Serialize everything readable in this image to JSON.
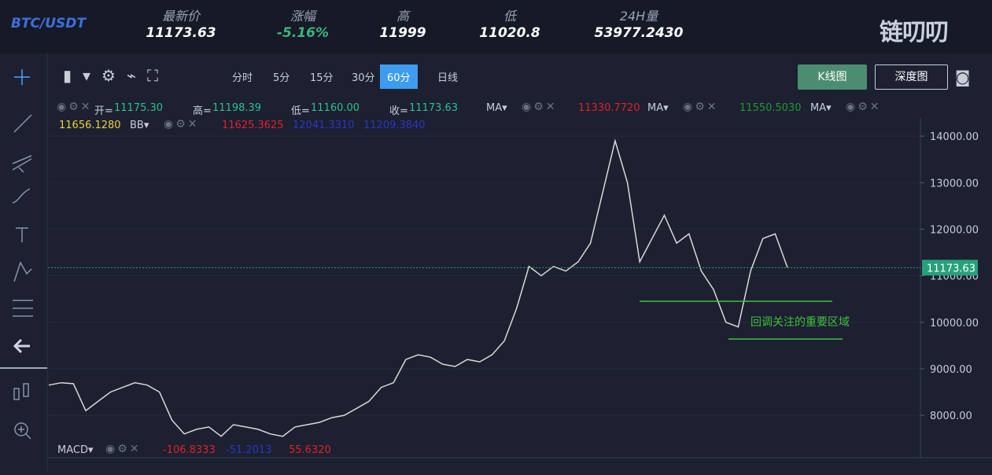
{
  "header": {
    "pair": "BTC/USDT",
    "logo": "链叨叨",
    "stats": [
      {
        "label": "最新价",
        "value": "11173.63"
      },
      {
        "label": "涨幅",
        "value": "-5.16%",
        "color": "#3fb27f"
      },
      {
        "label": "高",
        "value": "11999"
      },
      {
        "label": "低",
        "value": "11020.8"
      },
      {
        "label": "24H量",
        "value": "53977.2430"
      }
    ]
  },
  "toolbar": {
    "intervals": [
      "分时",
      "5分",
      "15分",
      "30分",
      "60分",
      "日线"
    ],
    "active": 4,
    "buttons": [
      "K线图",
      "深度图"
    ]
  },
  "legend": {
    "ohlc": [
      {
        "label": "开=",
        "value": "11175.30"
      },
      {
        "label": "高=",
        "value": "11198.39"
      },
      {
        "label": "低=",
        "value": "11160.00"
      },
      {
        "label": "收=",
        "value": "11173.63"
      }
    ],
    "ma": [
      {
        "label": "MA",
        "value": "11330.7720",
        "color": "#e0202a"
      },
      {
        "label": "MA",
        "value": "11550.5030",
        "color": "#1e9a2e"
      },
      {
        "label": "MA"
      }
    ],
    "bb": {
      "label": "BB",
      "value": "11656.1280",
      "bands": [
        {
          "value": "11625.3625",
          "color": "#e0202a"
        },
        {
          "value": "12041.3310",
          "color": "#2a35c8"
        },
        {
          "value": "11209.3840",
          "color": "#2a35c8"
        }
      ]
    },
    "macd": {
      "label": "MACD",
      "values": [
        {
          "value": "-106.8333",
          "color": "#e0202a"
        },
        {
          "value": "-51.2013",
          "color": "#2a35c8"
        },
        {
          "value": "55.6320",
          "color": "#e0202a"
        }
      ]
    }
  },
  "chart_data": {
    "type": "line",
    "color": "#d9d9d9",
    "values": [
      8650,
      8700,
      8680,
      8100,
      8300,
      8500,
      8600,
      8700,
      8650,
      8500,
      7900,
      7600,
      7700,
      7750,
      7550,
      7800,
      7750,
      7700,
      7600,
      7550,
      7750,
      7800,
      7850,
      7950,
      8000,
      8150,
      8300,
      8600,
      8700,
      9200,
      9300,
      9250,
      9100,
      9050,
      9200,
      9150,
      9300,
      9600,
      10300,
      11200,
      11000,
      11200,
      11100,
      11300,
      11700,
      12800,
      13900,
      13000,
      11300,
      11800,
      12300,
      11700,
      11900,
      11100,
      10700,
      10000,
      9900,
      11100,
      11800,
      11900,
      11173.63
    ],
    "ylim": [
      7090,
      14390
    ],
    "yticks": [
      {
        "value": 8000,
        "label": "8000.00"
      },
      {
        "value": 9000,
        "label": "9000.00"
      },
      {
        "value": 10000,
        "label": "10000.00"
      },
      {
        "value": 11000,
        "label": "11000.00"
      },
      {
        "value": 12000,
        "label": "12000.00"
      },
      {
        "value": 13000,
        "label": "13000.00"
      },
      {
        "value": 14000,
        "label": "14000.00"
      }
    ],
    "current": {
      "value": 11173.63,
      "label": "11173.63"
    },
    "annotation": {
      "text": "回调关注的重要区域",
      "levels": [
        10450,
        9640
      ],
      "color": "#3fbf3f"
    }
  }
}
